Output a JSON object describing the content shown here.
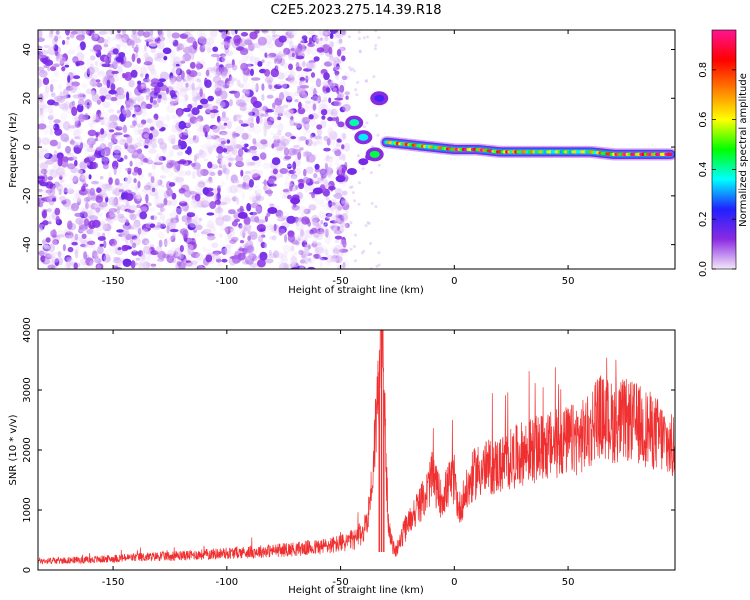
{
  "figure": {
    "title": "C2E5.2023.275.14.39.R18"
  },
  "chart_data": [
    {
      "type": "heatmap",
      "panel": "spectrogram",
      "xlabel": "Height of straight line (km)",
      "ylabel": "Frequency (Hz)",
      "xlim": [
        -183,
        97
      ],
      "ylim": [
        -50,
        48
      ],
      "xticks": [
        -150,
        -100,
        -50,
        0,
        50
      ],
      "yticks": [
        -40,
        -20,
        0,
        20,
        40
      ],
      "grid": false,
      "colorbar": {
        "label": "Normalized spectral amplitude",
        "ticks": [
          0.0,
          0.2,
          0.4,
          0.6,
          0.8
        ],
        "range": [
          0,
          0.96
        ],
        "colors": [
          "#f4e8fb",
          "#8a2be2",
          "#2020ff",
          "#00ffff",
          "#00ff00",
          "#ffff00",
          "#ff8000",
          "#ff0000",
          "#ff1493"
        ]
      },
      "features": {
        "noise_region_x": [
          -183,
          -47
        ],
        "main_line": {
          "x": [
            -30,
            -20,
            -10,
            0,
            10,
            20,
            30,
            40,
            50,
            60,
            70,
            80,
            95
          ],
          "frequency": [
            2,
            1,
            0,
            -1,
            -1,
            -2,
            -2,
            -2,
            -2,
            -2,
            -3,
            -3,
            -3
          ],
          "amplitude": [
            0.6,
            0.8,
            0.6,
            0.85,
            0.9,
            0.8,
            0.7,
            0.55,
            0.55,
            0.6,
            0.8,
            0.9,
            0.92
          ]
        },
        "onset_curve": {
          "x": [
            -93,
            -80,
            -70,
            -60,
            -50,
            -45,
            -40,
            -37
          ],
          "frequency": [
            -28,
            -26,
            -22,
            -18,
            -13,
            -10,
            -6,
            -4
          ]
        },
        "onset_blobs": [
          {
            "x": -44,
            "frequency": 10,
            "amplitude": 0.4
          },
          {
            "x": -40,
            "frequency": 4,
            "amplitude": 0.35
          },
          {
            "x": -35,
            "frequency": -3,
            "amplitude": 0.45
          },
          {
            "x": -33,
            "frequency": 20,
            "amplitude": 0.2
          }
        ]
      }
    },
    {
      "type": "line",
      "panel": "snr",
      "xlabel": "Height of straight line (km)",
      "ylabel": "SNR (10 * v/v)",
      "xlim": [
        -183,
        97
      ],
      "ylim": [
        0,
        4000
      ],
      "xticks": [
        -150,
        -100,
        -50,
        0,
        50
      ],
      "yticks": [
        0,
        1000,
        2000,
        3000,
        4000
      ],
      "grid": false,
      "series": [
        {
          "color": "#f03030",
          "x": [
            -183,
            -160,
            -140,
            -120,
            -100,
            -80,
            -60,
            -50,
            -43,
            -40,
            -38,
            -36,
            -35,
            -34,
            -33,
            -32,
            -31,
            -30,
            -29,
            -28,
            -26,
            -24,
            -22,
            -20,
            -18,
            -15,
            -12,
            -10,
            -8,
            -6,
            -4,
            -2,
            0,
            2,
            4,
            6,
            8,
            10,
            15,
            20,
            25,
            30,
            35,
            40,
            45,
            50,
            55,
            60,
            62,
            65,
            70,
            75,
            80,
            85,
            90,
            95,
            97
          ],
          "y": [
            150,
            170,
            210,
            240,
            280,
            320,
            380,
            440,
            520,
            650,
            900,
            1500,
            2200,
            2700,
            3300,
            4000,
            3000,
            1800,
            800,
            500,
            300,
            450,
            650,
            800,
            950,
            1100,
            1300,
            1550,
            1400,
            1200,
            1300,
            1450,
            1500,
            1000,
            1200,
            1350,
            1550,
            1650,
            1700,
            1750,
            1850,
            1950,
            2000,
            2050,
            2100,
            2150,
            2200,
            2300,
            2600,
            2550,
            2450,
            2500,
            2450,
            2350,
            2250,
            2050,
            2000
          ]
        }
      ]
    }
  ]
}
